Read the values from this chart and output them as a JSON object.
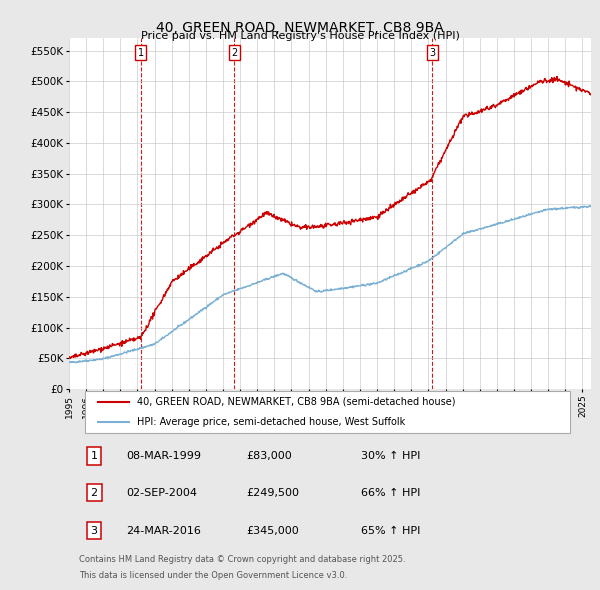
{
  "title": "40, GREEN ROAD, NEWMARKET, CB8 9BA",
  "subtitle": "Price paid vs. HM Land Registry's House Price Index (HPI)",
  "ylabel_ticks": [
    "£0",
    "£50K",
    "£100K",
    "£150K",
    "£200K",
    "£250K",
    "£300K",
    "£350K",
    "£400K",
    "£450K",
    "£500K",
    "£550K"
  ],
  "ytick_values": [
    0,
    50000,
    100000,
    150000,
    200000,
    250000,
    300000,
    350000,
    400000,
    450000,
    500000,
    550000
  ],
  "xmin": 1995.0,
  "xmax": 2025.5,
  "ymin": 0,
  "ymax": 570000,
  "bg_color": "#e8e8e8",
  "plot_bg_color": "#ffffff",
  "grid_color": "#cccccc",
  "red_color": "#cc0000",
  "blue_color": "#7ab0d4",
  "vline_color": "#cc0000",
  "sale_years": [
    1999.18,
    2004.67,
    2016.23
  ],
  "sale_labels": [
    "1",
    "2",
    "3"
  ],
  "legend_entry1": "40, GREEN ROAD, NEWMARKET, CB8 9BA (semi-detached house)",
  "legend_entry2": "HPI: Average price, semi-detached house, West Suffolk",
  "table_rows": [
    [
      "1",
      "08-MAR-1999",
      "£83,000",
      "30% ↑ HPI"
    ],
    [
      "2",
      "02-SEP-2004",
      "£249,500",
      "66% ↑ HPI"
    ],
    [
      "3",
      "24-MAR-2016",
      "£345,000",
      "65% ↑ HPI"
    ]
  ],
  "footnote1": "Contains HM Land Registry data © Crown copyright and database right 2025.",
  "footnote2": "This data is licensed under the Open Government Licence v3.0."
}
